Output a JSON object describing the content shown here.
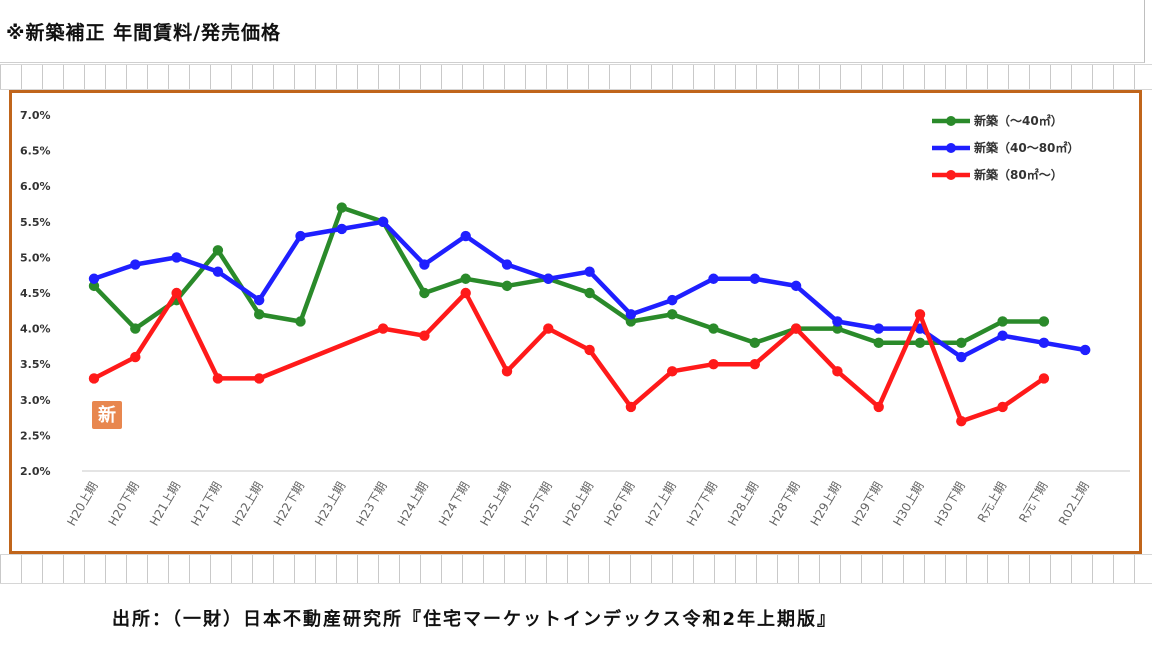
{
  "header": {
    "title": "※新築補正 年間賃料/発売価格"
  },
  "source": {
    "text": "出所：（一財）日本不動産研究所『住宅マーケットインデックス令和2年上期版』"
  },
  "badge": {
    "text": "新"
  },
  "chart_data": {
    "type": "line",
    "title": "",
    "xlabel": "",
    "ylabel": "",
    "ylim": [
      2.0,
      7.0
    ],
    "yticks": [
      2.0,
      2.5,
      3.0,
      3.5,
      4.0,
      4.5,
      5.0,
      5.5,
      6.0,
      6.5,
      7.0
    ],
    "ytick_labels": [
      "2.0%",
      "2.5%",
      "3.0%",
      "3.5%",
      "4.0%",
      "4.5%",
      "5.0%",
      "5.5%",
      "6.0%",
      "6.5%",
      "7.0%"
    ],
    "grid": "horizontal baseline only",
    "legend": "top-right",
    "categories": [
      "H20上期",
      "H20下期",
      "H21上期",
      "H21下期",
      "H22上期",
      "H22下期",
      "H23上期",
      "H23下期",
      "H24上期",
      "H24下期",
      "H25上期",
      "H25下期",
      "H26上期",
      "H26下期",
      "H27上期",
      "H27下期",
      "H28上期",
      "H28下期",
      "H29上期",
      "H29下期",
      "H30上期",
      "H30下期",
      "R元上期",
      "R元下期",
      "R02上期"
    ],
    "series": [
      {
        "name": "新築（～40㎡）",
        "color": "#2a8a2a",
        "values": [
          4.6,
          4.0,
          4.4,
          5.1,
          4.2,
          4.1,
          5.7,
          5.5,
          4.5,
          4.7,
          4.6,
          4.7,
          4.5,
          4.1,
          4.2,
          4.0,
          3.8,
          4.0,
          4.0,
          3.8,
          3.8,
          3.8,
          4.1,
          4.1,
          null
        ]
      },
      {
        "name": "新築（40～80㎡）",
        "color": "#1f1fff",
        "values": [
          4.7,
          4.9,
          5.0,
          4.8,
          4.4,
          5.3,
          5.4,
          5.5,
          4.9,
          5.3,
          4.9,
          4.7,
          4.8,
          4.2,
          4.4,
          4.7,
          4.7,
          4.6,
          4.1,
          4.0,
          4.0,
          3.6,
          3.9,
          3.8,
          3.7
        ]
      },
      {
        "name": "新築（80㎡～）",
        "color": "#ff1a1a",
        "values": [
          3.3,
          3.6,
          4.5,
          3.3,
          3.3,
          null,
          null,
          4.0,
          3.9,
          4.5,
          3.4,
          4.0,
          3.7,
          2.9,
          3.4,
          3.5,
          3.5,
          4.0,
          3.4,
          2.9,
          4.2,
          2.7,
          2.9,
          3.3,
          null
        ]
      }
    ]
  }
}
